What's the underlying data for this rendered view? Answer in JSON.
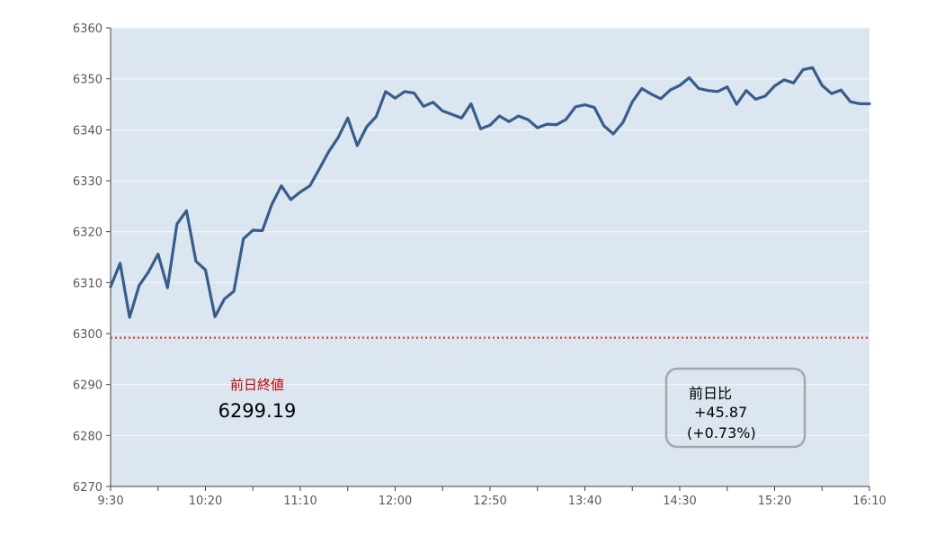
{
  "chart_data": {
    "type": "line",
    "xlabel": "",
    "ylabel": "",
    "ylim": [
      6270,
      6360
    ],
    "yticks": [
      6270,
      6280,
      6290,
      6300,
      6310,
      6320,
      6330,
      6340,
      6350,
      6360
    ],
    "xlim_minutes": [
      0,
      400
    ],
    "x_tick_labels": [
      {
        "label": "9:30",
        "minute": 0
      },
      {
        "label": "10:20",
        "minute": 50
      },
      {
        "label": "11:10",
        "minute": 100
      },
      {
        "label": "12:00",
        "minute": 150
      },
      {
        "label": "12:50",
        "minute": 200
      },
      {
        "label": "13:40",
        "minute": 250
      },
      {
        "label": "14:30",
        "minute": 300
      },
      {
        "label": "15:20",
        "minute": 350
      },
      {
        "label": "16:10",
        "minute": 400
      }
    ],
    "x_minor_ticks": [
      25,
      75,
      125,
      175,
      225,
      275,
      325,
      375
    ],
    "grid": true,
    "line_color": "#385d8a",
    "plot_background": "#dce6f1",
    "reference_line_color": "#d9403a",
    "series": [
      {
        "name": "",
        "x": [
          0,
          5,
          10,
          15,
          20,
          25,
          30,
          35,
          40,
          45,
          50,
          55,
          60,
          65,
          70,
          75,
          80,
          85,
          90,
          95,
          100,
          105,
          110,
          115,
          120,
          125,
          130,
          135,
          140,
          145,
          150,
          155,
          160,
          165,
          170,
          175,
          180,
          185,
          190,
          195,
          200,
          205,
          210,
          215,
          220,
          225,
          230,
          235,
          240,
          245,
          250,
          255,
          260,
          265,
          270,
          275,
          280,
          285,
          290,
          295,
          300,
          305,
          310,
          315,
          320,
          325,
          330,
          335,
          340,
          345,
          350,
          355,
          360,
          365,
          370,
          375,
          380,
          385,
          390,
          395,
          400
        ],
        "values": [
          6309.2,
          6313.8,
          6303.2,
          6309.4,
          6312.1,
          6315.6,
          6309.0,
          6321.5,
          6324.1,
          6314.2,
          6312.5,
          6303.3,
          6306.8,
          6308.3,
          6318.6,
          6320.3,
          6320.2,
          6325.4,
          6329.0,
          6326.3,
          6327.8,
          6329.0,
          6332.3,
          6335.7,
          6338.5,
          6342.3,
          6336.9,
          6340.6,
          6342.6,
          6347.5,
          6346.2,
          6347.5,
          6347.2,
          6344.6,
          6345.4,
          6343.7,
          6343.0,
          6342.3,
          6345.1,
          6340.2,
          6340.9,
          6342.7,
          6341.6,
          6342.7,
          6342.0,
          6340.4,
          6341.1,
          6341.0,
          6342.0,
          6344.5,
          6344.9,
          6344.4,
          6340.8,
          6339.2,
          6341.4,
          6345.5,
          6348.1,
          6347.0,
          6346.1,
          6347.8,
          6348.7,
          6350.2,
          6348.1,
          6347.7,
          6347.5,
          6348.4,
          6345.0,
          6347.7,
          6346.0,
          6346.6,
          6348.6,
          6349.8,
          6349.2,
          6351.8,
          6352.2,
          6348.7,
          6347.1,
          6347.8,
          6345.5,
          6345.1,
          6345.1
        ]
      }
    ],
    "reference_line": {
      "value": 6299.19,
      "label": "前日終値",
      "value_text": "6299.19"
    },
    "change_box": {
      "label": "前日比",
      "value": "+45.87",
      "percent": "(+0.73%)"
    }
  }
}
